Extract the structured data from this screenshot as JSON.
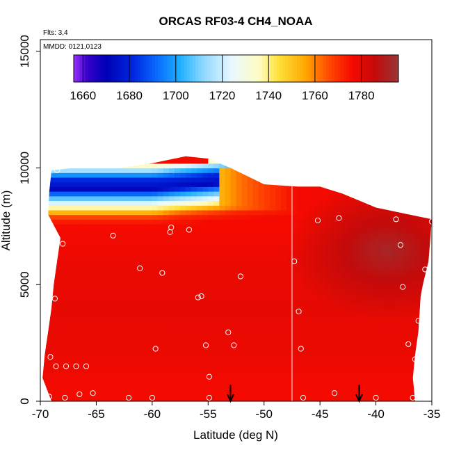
{
  "chart_data": {
    "type": "heatmap",
    "title": "ORCAS RF03-4 CH4_NOAA",
    "xlabel": "Latitude (deg N)",
    "ylabel": "Altitude (m)",
    "xlim": [
      -70,
      -35
    ],
    "ylim": [
      0,
      15500
    ],
    "x_ticks": [
      -70,
      -65,
      -60,
      -55,
      -50,
      -45,
      -40,
      -35
    ],
    "y_ticks": [
      0,
      5000,
      10000,
      15000
    ],
    "annotations": {
      "flights": "Flts: 3,4",
      "dates": "MMDD: 0121,0123"
    },
    "colorbar": {
      "range": [
        1656,
        1796
      ],
      "ticks": [
        1660,
        1680,
        1700,
        1720,
        1740,
        1760,
        1780
      ],
      "stops": [
        {
          "value": 1656,
          "color": "#9b30ff"
        },
        {
          "value": 1662,
          "color": "#3500c8"
        },
        {
          "value": 1670,
          "color": "#0000b5"
        },
        {
          "value": 1682,
          "color": "#0028e0"
        },
        {
          "value": 1692,
          "color": "#0a6dff"
        },
        {
          "value": 1702,
          "color": "#1fb0ff"
        },
        {
          "value": 1712,
          "color": "#8fd8ff"
        },
        {
          "value": 1724,
          "color": "#e9f8ff"
        },
        {
          "value": 1736,
          "color": "#fffcc2"
        },
        {
          "value": 1744,
          "color": "#ffe23d"
        },
        {
          "value": 1756,
          "color": "#ffa600"
        },
        {
          "value": 1766,
          "color": "#ff4a00"
        },
        {
          "value": 1776,
          "color": "#f50a00"
        },
        {
          "value": 1786,
          "color": "#c40a0a"
        },
        {
          "value": 1796,
          "color": "#963838"
        }
      ]
    },
    "profile_top": [
      [
        -69,
        9900
      ],
      [
        -67,
        10000
      ],
      [
        -63,
        10000
      ],
      [
        -60,
        10200
      ],
      [
        -57,
        10500
      ],
      [
        -55,
        10400
      ],
      [
        -53,
        10000
      ],
      [
        -50,
        9300
      ],
      [
        -47,
        9200
      ],
      [
        -45,
        9200
      ],
      [
        -43,
        8900
      ],
      [
        -40,
        8300
      ],
      [
        -37,
        8000
      ],
      [
        -35,
        7800
      ]
    ],
    "profile_left": [
      [
        -69,
        9900
      ],
      [
        -69.2,
        9000
      ],
      [
        -69.3,
        8000
      ],
      [
        -68.2,
        7000
      ],
      [
        -68.5,
        6000
      ],
      [
        -68.8,
        5000
      ],
      [
        -69,
        4000
      ],
      [
        -69.3,
        3000
      ],
      [
        -69.6,
        2000
      ],
      [
        -69.8,
        1000
      ],
      [
        -69,
        0
      ]
    ],
    "profile_right": [
      [
        -35,
        7800
      ],
      [
        -35.3,
        6000
      ],
      [
        -35.8,
        5000
      ],
      [
        -36,
        4500
      ],
      [
        -36.2,
        3000
      ],
      [
        -36.5,
        2000
      ],
      [
        -36.7,
        1000
      ],
      [
        -36.5,
        0
      ]
    ],
    "layers": [
      {
        "alt": 10100,
        "value": 1735
      },
      {
        "alt": 9800,
        "value": 1705
      },
      {
        "alt": 9500,
        "value": 1682
      },
      {
        "alt": 9100,
        "value": 1672
      },
      {
        "alt": 8800,
        "value": 1700
      },
      {
        "alt": 8500,
        "value": 1722
      },
      {
        "alt": 8200,
        "value": 1745
      },
      {
        "alt": 8000,
        "value": 1762
      },
      {
        "alt": 7800,
        "value": 1772
      },
      {
        "alt": 7500,
        "value": 1776
      },
      {
        "alt": 6000,
        "value": 1778
      },
      {
        "alt": 4000,
        "value": 1779
      },
      {
        "alt": 2000,
        "value": 1778
      },
      {
        "alt": 0,
        "value": 1776
      }
    ],
    "upper_band": [
      {
        "lat": -57,
        "value": 1740
      },
      {
        "lat": -52,
        "value": 1762
      },
      {
        "lat": -47,
        "value": 1776
      },
      {
        "lat": -35,
        "value": 1778
      }
    ],
    "dark_core": {
      "lat": -39,
      "alt": 6500,
      "value": 1794
    },
    "vertical_line_lat": -47.5,
    "arrow_lats": [
      -53,
      -41.5
    ],
    "sample_points": [
      {
        "lat": -68.5,
        "alt": 9900
      },
      {
        "lat": -68,
        "alt": 6750
      },
      {
        "lat": -68.7,
        "alt": 4400
      },
      {
        "lat": -69.1,
        "alt": 1900
      },
      {
        "lat": -68.6,
        "alt": 1500
      },
      {
        "lat": -67.7,
        "alt": 1500
      },
      {
        "lat": -66.8,
        "alt": 1500
      },
      {
        "lat": -65.9,
        "alt": 1500
      },
      {
        "lat": -69.2,
        "alt": 200
      },
      {
        "lat": -67.8,
        "alt": 150
      },
      {
        "lat": -66.5,
        "alt": 300
      },
      {
        "lat": -65.3,
        "alt": 350
      },
      {
        "lat": -63.5,
        "alt": 7100
      },
      {
        "lat": -61.1,
        "alt": 5700
      },
      {
        "lat": -59.1,
        "alt": 5500
      },
      {
        "lat": -59.7,
        "alt": 2250
      },
      {
        "lat": -58.3,
        "alt": 7450
      },
      {
        "lat": -58.4,
        "alt": 7250
      },
      {
        "lat": -56.7,
        "alt": 7350
      },
      {
        "lat": -55.9,
        "alt": 4450
      },
      {
        "lat": -55.6,
        "alt": 4500
      },
      {
        "lat": -55.2,
        "alt": 2400
      },
      {
        "lat": -54.9,
        "alt": 1050
      },
      {
        "lat": -54.9,
        "alt": 150
      },
      {
        "lat": -53.2,
        "alt": 2950
      },
      {
        "lat": -52.7,
        "alt": 2400
      },
      {
        "lat": -52.1,
        "alt": 5350
      },
      {
        "lat": -47.3,
        "alt": 6000
      },
      {
        "lat": -46.9,
        "alt": 3850
      },
      {
        "lat": -46.7,
        "alt": 2250
      },
      {
        "lat": -45.2,
        "alt": 7750
      },
      {
        "lat": -43.3,
        "alt": 7850
      },
      {
        "lat": -43.7,
        "alt": 350
      },
      {
        "lat": -38.2,
        "alt": 7800
      },
      {
        "lat": -37.8,
        "alt": 6700
      },
      {
        "lat": -37.6,
        "alt": 4900
      },
      {
        "lat": -37.1,
        "alt": 2450
      },
      {
        "lat": -36.5,
        "alt": 1800
      },
      {
        "lat": -36.2,
        "alt": 3450
      },
      {
        "lat": -35.6,
        "alt": 5650
      },
      {
        "lat": -35,
        "alt": 7700
      },
      {
        "lat": -36.7,
        "alt": 150
      },
      {
        "lat": -40,
        "alt": 150
      },
      {
        "lat": -46.5,
        "alt": 150
      },
      {
        "lat": -60,
        "alt": 150
      },
      {
        "lat": -62.1,
        "alt": 150
      }
    ]
  }
}
